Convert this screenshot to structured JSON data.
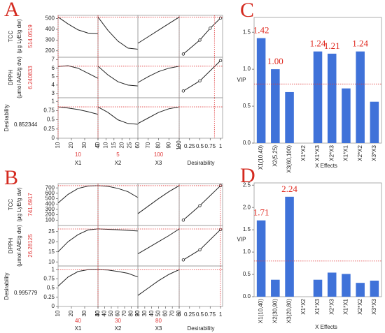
{
  "chart_data": [
    {
      "type": "profiler",
      "label": "A",
      "responses": [
        {
          "name": "TCC",
          "unit": "(μg LyE/g dw)",
          "current": 514.0519,
          "ylim": [
            140,
            530
          ],
          "yticks": [
            200,
            300,
            400,
            500
          ],
          "profiles": [
            [
              514,
              450,
              395,
              365,
              360
            ],
            [
              514,
              390,
              290,
              225,
              215
            ],
            [
              270,
              331,
              392,
              453,
              514
            ]
          ],
          "desirability_x": [
            0.1,
            0.5,
            0.75,
            1
          ],
          "desirability_y": [
            170,
            300,
            410,
            505
          ]
        },
        {
          "name": "DPPH",
          "unit": "(μmol AAE/g dw)",
          "current": 6.240833,
          "ylim": [
            2.5,
            7.3
          ],
          "yticks": [
            3,
            4,
            5,
            6,
            7
          ],
          "profiles": [
            [
              6.2,
              6.3,
              6.0,
              5.4,
              4.8
            ],
            [
              6.24,
              5.2,
              4.4,
              4.0,
              3.9
            ],
            [
              4.3,
              5.0,
              5.6,
              6.0,
              6.24
            ]
          ],
          "desirability_x": [
            0.1,
            0.5,
            1
          ],
          "desirability_y": [
            3.3,
            4.5,
            6.9
          ]
        },
        {
          "name": "Desirability",
          "current": 0.852344,
          "ylim": [
            0,
            1.1
          ],
          "yticks": [
            0,
            0.25,
            0.5,
            0.75,
            1
          ],
          "profiles": [
            [
              0.85,
              0.82,
              0.78,
              0.72,
              0.65
            ],
            [
              0.85,
              0.7,
              0.5,
              0.4,
              0.38
            ],
            [
              0.4,
              0.55,
              0.7,
              0.8,
              0.85
            ]
          ]
        }
      ],
      "factors": [
        {
          "name": "X1",
          "current": 10,
          "xlim": [
            10,
            40
          ],
          "xticks": [
            10,
            20,
            30,
            40
          ],
          "x": [
            10,
            17.5,
            25,
            32.5,
            40
          ]
        },
        {
          "name": "X2",
          "current": 5,
          "xlim": [
            5,
            30
          ],
          "xticks": [
            5,
            10,
            15,
            20,
            25
          ],
          "x": [
            5,
            11.25,
            17.5,
            23.75,
            30
          ]
        },
        {
          "name": "X3",
          "current": 100,
          "xlim": [
            60,
            100
          ],
          "xticks": [
            60,
            70,
            80,
            90,
            100
          ],
          "x": [
            60,
            70,
            80,
            90,
            100
          ]
        }
      ],
      "desirability_axis": {
        "name": "Desirability",
        "xlim": [
          0,
          1.05
        ],
        "xticks": [
          0,
          0.25,
          0.5,
          0.75,
          1
        ]
      }
    },
    {
      "type": "bar",
      "label": "C",
      "ylabel": "VIP",
      "xlabel": "X Effects",
      "color": "#3f72d9",
      "categories": [
        "X1(10,40)",
        "X2(5,25)",
        "X3(60,100)",
        "X1*X2",
        "X1*X3",
        "X2*X3",
        "X1*X1",
        "X2*X2",
        "X3*X3"
      ],
      "values": [
        1.42,
        1.0,
        0.69,
        null,
        1.24,
        1.21,
        0.74,
        1.24,
        0.56
      ],
      "value_labels": [
        "1.42",
        "1.00",
        null,
        null,
        "1.24",
        "1.21",
        null,
        "1.24",
        null
      ],
      "reference_line": 0.8,
      "ylim": [
        0,
        1.7
      ],
      "yticks": [
        {
          "value": 0,
          "label": "0.0"
        },
        {
          "value": 0.5,
          "label": "0.5"
        },
        {
          "value": 1,
          "label": "1.0"
        },
        {
          "value": 1.5,
          "label": "1.5"
        }
      ]
    },
    {
      "type": "profiler",
      "label": "B",
      "responses": [
        {
          "name": "TCC",
          "unit": "(μg LyE/g dw)",
          "current": 741.6917,
          "ylim": [
            0,
            780
          ],
          "yticks": [
            100,
            200,
            300,
            400,
            500,
            600,
            700
          ],
          "profiles": [
            [
              420,
              580,
              690,
              735,
              742
            ],
            [
              742,
              730,
              690,
              630,
              520
            ],
            [
              220,
              360,
              500,
              630,
              742
            ]
          ],
          "desirability_x": [
            0.1,
            0.5,
            1
          ],
          "desirability_y": [
            100,
            370,
            742
          ]
        },
        {
          "name": "DPPH",
          "unit": "(μmol AAE/g dw)",
          "current": 26.28125,
          "ylim": [
            8,
            28
          ],
          "yticks": [
            10,
            15,
            20,
            25
          ],
          "profiles": [
            [
              15,
              20,
              23.5,
              25.8,
              26.3
            ],
            [
              26.3,
              26.1,
              25.9,
              25.6,
              25.3
            ],
            [
              14,
              17,
              20,
              23,
              26.3
            ]
          ],
          "desirability_x": [
            0.1,
            0.5,
            1
          ],
          "desirability_y": [
            11,
            16,
            26
          ]
        },
        {
          "name": "Desirability",
          "current": 0.995779,
          "ylim": [
            0,
            1.1
          ],
          "yticks": [
            0,
            0.25,
            0.5,
            0.75,
            1
          ],
          "profiles": [
            [
              0.55,
              0.8,
              0.95,
              1.0,
              1.0
            ],
            [
              1.0,
              0.99,
              0.95,
              0.9,
              0.8
            ],
            [
              0.3,
              0.5,
              0.7,
              0.87,
              1.0
            ]
          ]
        }
      ],
      "factors": [
        {
          "name": "X1",
          "current": 40,
          "xlim": [
            10,
            40
          ],
          "xticks": [
            10,
            20,
            30,
            40
          ],
          "x": [
            10,
            17.5,
            25,
            32.5,
            40
          ]
        },
        {
          "name": "X2",
          "current": 30,
          "xlim": [
            30,
            90
          ],
          "xticks": [
            30,
            40,
            50,
            60,
            70,
            80,
            90
          ],
          "x": [
            30,
            45,
            60,
            75,
            90
          ]
        },
        {
          "name": "X3",
          "current": 80,
          "xlim": [
            20,
            80
          ],
          "xticks": [
            20,
            30,
            40,
            50,
            60,
            70,
            80
          ],
          "x": [
            20,
            35,
            50,
            65,
            80
          ]
        }
      ],
      "desirability_axis": {
        "name": "Desirability",
        "xlim": [
          0,
          1.05
        ],
        "xticks": [
          0,
          0.25,
          0.5,
          0.75,
          1
        ]
      }
    },
    {
      "type": "bar",
      "label": "D",
      "ylabel": "VIP",
      "xlabel": "X Effects",
      "color": "#3f72d9",
      "categories": [
        "X1(10,40)",
        "X2(30,90)",
        "X3(20,80)",
        "X1*X2",
        "X1*X3",
        "X2*X3",
        "X1*X1",
        "X2*X2",
        "X3*X3"
      ],
      "values": [
        1.71,
        0.38,
        2.24,
        null,
        0.38,
        0.54,
        0.51,
        0.31,
        0.36
      ],
      "value_labels": [
        "1.71",
        null,
        "2.24",
        null,
        null,
        null,
        null,
        null,
        null
      ],
      "reference_line": 0.8,
      "ylim": [
        0,
        2.55
      ],
      "yticks": [
        {
          "value": 0,
          "label": "0.0"
        },
        {
          "value": 0.5,
          "label": "0.5"
        },
        {
          "value": 1,
          "label": "1.0"
        },
        {
          "value": 1.5,
          "label": "1.5"
        },
        {
          "value": 2,
          "label": "2.0"
        },
        {
          "value": 2.5,
          "label": "2.5"
        }
      ]
    }
  ]
}
